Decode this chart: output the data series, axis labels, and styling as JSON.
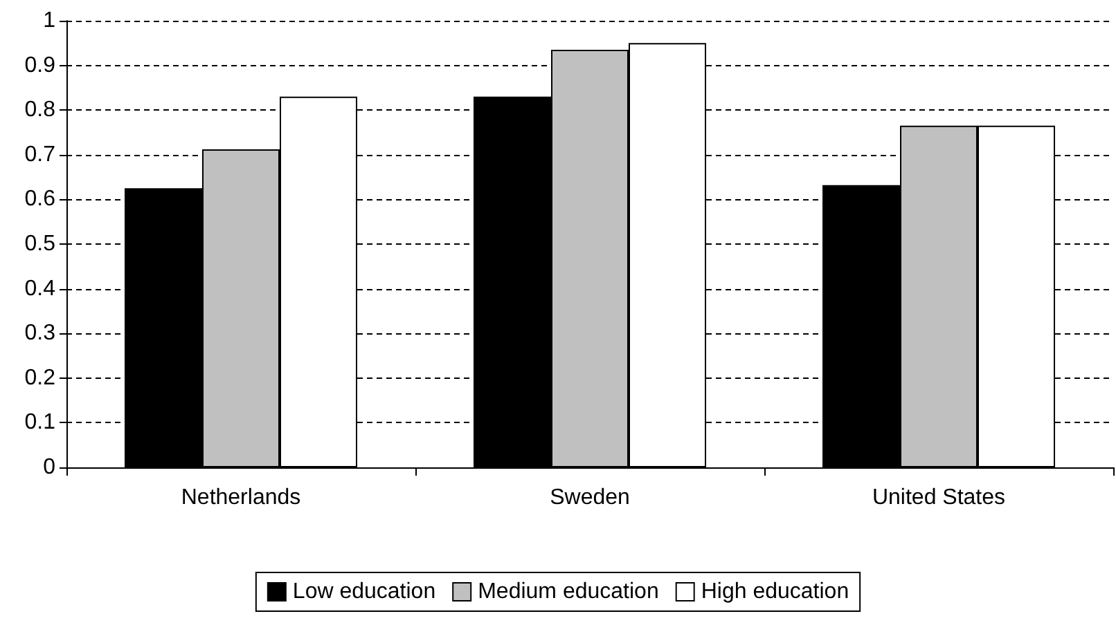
{
  "chart_data": {
    "type": "bar",
    "categories": [
      "Netherlands",
      "Sweden",
      "United States"
    ],
    "series": [
      {
        "name": "Low education",
        "color": "#000000",
        "values": [
          0.625,
          0.83,
          0.632
        ]
      },
      {
        "name": "Medium education",
        "color": "#c0c0c0",
        "values": [
          0.712,
          0.935,
          0.765
        ]
      },
      {
        "name": "High education",
        "color": "#ffffff",
        "values": [
          0.83,
          0.95,
          0.765
        ]
      }
    ],
    "ylim": [
      0,
      1
    ],
    "yticks": [
      0,
      0.1,
      0.2,
      0.3,
      0.4,
      0.5,
      0.6,
      0.7,
      0.8,
      0.9,
      1
    ],
    "grid": "y",
    "legend": "bottom"
  }
}
